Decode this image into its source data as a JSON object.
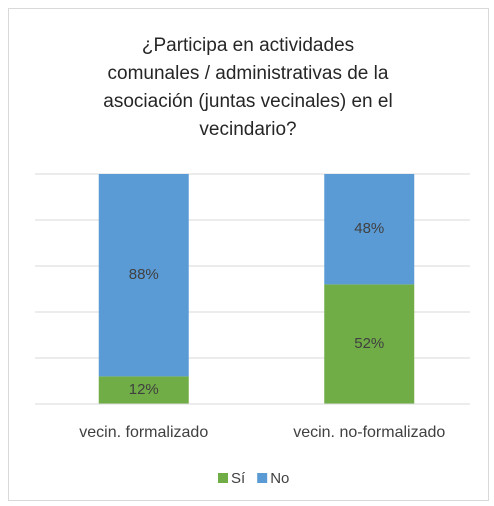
{
  "chart_data": {
    "type": "stacked_bar",
    "title": [
      "¿Participa en actividades",
      "comunales / administrativas de la",
      "asociación (juntas vecinales) en el",
      "vecindario?"
    ],
    "categories": [
      "vecin. formalizado",
      "vecin. no-formalizado"
    ],
    "series": [
      {
        "name": "Sí",
        "color": "#70ad47",
        "values": [
          12,
          52
        ],
        "value_labels": [
          "12%",
          "52%"
        ]
      },
      {
        "name": "No",
        "color": "#5b9bd5",
        "values": [
          88,
          48
        ],
        "value_labels": [
          "88%",
          "48%"
        ]
      }
    ],
    "ylim": [
      0,
      100
    ],
    "yticks": [
      0,
      20,
      40,
      60,
      80,
      100
    ],
    "grid": true,
    "legend": "bottom"
  }
}
